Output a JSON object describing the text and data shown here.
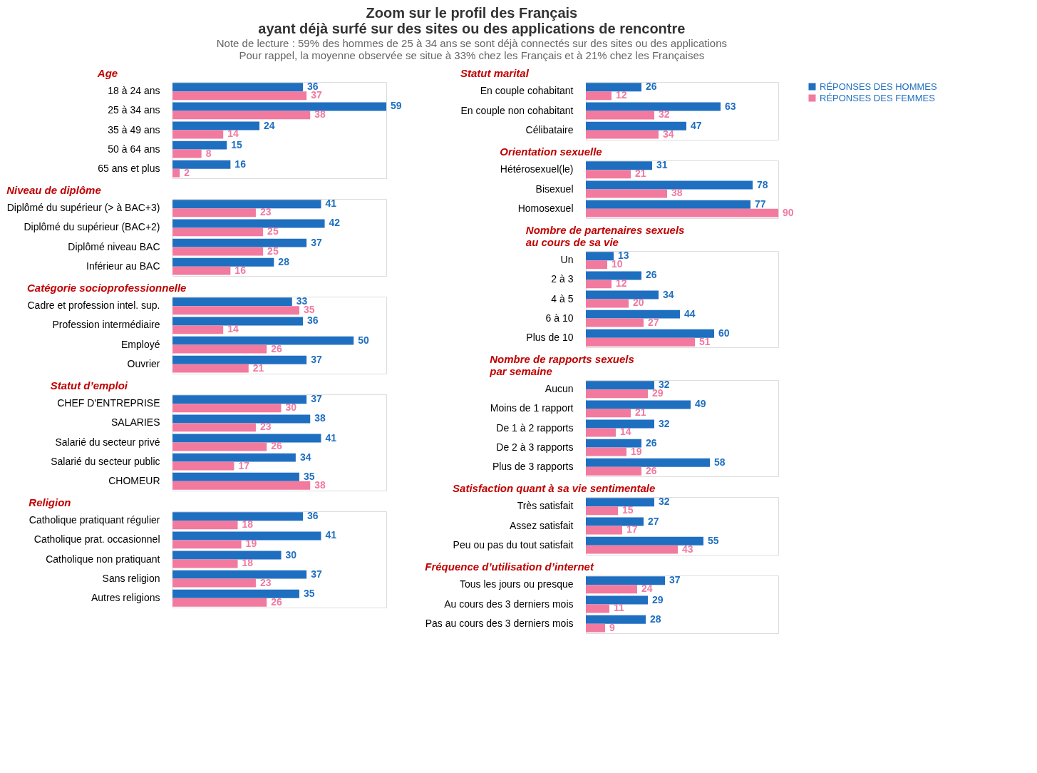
{
  "chart_data": [
    {
      "type": "other",
      "title": "Zoom sur le profil des Français\nayant déjà surfé sur des sites ou des applications de rencontre",
      "subtitle": "Note de lecture : 59% des hommes de 25 à 34 ans se sont déjà connectés sur des sites ou des applications",
      "annotations": [
        "Pour rappel, la moyenne observée se situe à 33% chez les Français et à 21% chez les Françaises"
      ]
    },
    {
      "type": "bar",
      "orientation": "horizontal",
      "title": "Age",
      "data_labels": true,
      "legend": "right",
      "categories": [
        "18 à 24 ans",
        "25 à 34 ans",
        "35 à 49 ans",
        "50 à 64 ans",
        "65 ans et plus"
      ],
      "series": [
        {
          "name": "RÉPONSES DES HOMMES",
          "color": "#1f6fc1",
          "values": [
            36,
            59,
            24,
            15,
            16
          ]
        },
        {
          "name": "RÉPONSES DES FEMMES",
          "color": "#f27a9f",
          "values": [
            37,
            38,
            14,
            8,
            2
          ]
        }
      ]
    },
    {
      "type": "bar",
      "orientation": "horizontal",
      "title": "Niveau de diplôme",
      "data_labels": true,
      "categories": [
        "Diplômé du supérieur (> à BAC+3)",
        "Diplômé du supérieur (BAC+2)",
        "Diplômé niveau BAC",
        "Inférieur au BAC"
      ],
      "series": [
        {
          "name": "RÉPONSES DES HOMMES",
          "color": "#1f6fc1",
          "values": [
            41,
            42,
            37,
            28
          ]
        },
        {
          "name": "RÉPONSES DES FEMMES",
          "color": "#f27a9f",
          "values": [
            23,
            25,
            25,
            16
          ]
        }
      ]
    },
    {
      "type": "bar",
      "orientation": "horizontal",
      "title": "Catégorie socioprofessionnelle",
      "data_labels": true,
      "categories": [
        "Cadre et profession intel. sup.",
        "Profession intermédiaire",
        "Employé",
        "Ouvrier"
      ],
      "series": [
        {
          "name": "RÉPONSES DES HOMMES",
          "color": "#1f6fc1",
          "values": [
            33,
            36,
            50,
            37
          ]
        },
        {
          "name": "RÉPONSES DES FEMMES",
          "color": "#f27a9f",
          "values": [
            35,
            14,
            26,
            21
          ]
        }
      ]
    },
    {
      "type": "bar",
      "orientation": "horizontal",
      "title": "Statut d’emploi",
      "data_labels": true,
      "categories": [
        "CHEF D'ENTREPRISE",
        "SALARIES",
        "Salarié du secteur privé",
        "Salarié du secteur public",
        "CHOMEUR"
      ],
      "series": [
        {
          "name": "RÉPONSES DES HOMMES",
          "color": "#1f6fc1",
          "values": [
            37,
            38,
            41,
            34,
            35
          ]
        },
        {
          "name": "RÉPONSES DES FEMMES",
          "color": "#f27a9f",
          "values": [
            30,
            23,
            26,
            17,
            38
          ]
        }
      ]
    },
    {
      "type": "bar",
      "orientation": "horizontal",
      "title": "Religion",
      "data_labels": true,
      "categories": [
        "Catholique pratiquant régulier",
        "Catholique prat. occasionnel",
        "Catholique non pratiquant",
        "Sans religion",
        "Autres religions"
      ],
      "series": [
        {
          "name": "RÉPONSES DES HOMMES",
          "color": "#1f6fc1",
          "values": [
            36,
            41,
            30,
            37,
            35
          ]
        },
        {
          "name": "RÉPONSES DES FEMMES",
          "color": "#f27a9f",
          "values": [
            18,
            19,
            18,
            23,
            26
          ]
        }
      ]
    },
    {
      "type": "bar",
      "orientation": "horizontal",
      "title": "Statut marital",
      "data_labels": true,
      "categories": [
        "En couple cohabitant",
        "En couple non cohabitant",
        "Célibataire"
      ],
      "series": [
        {
          "name": "RÉPONSES DES HOMMES",
          "color": "#1f6fc1",
          "values": [
            26,
            63,
            47
          ]
        },
        {
          "name": "RÉPONSES DES FEMMES",
          "color": "#f27a9f",
          "values": [
            12,
            32,
            34
          ]
        }
      ]
    },
    {
      "type": "bar",
      "orientation": "horizontal",
      "title": "Orientation sexuelle",
      "data_labels": true,
      "categories": [
        "Hétérosexuel(le)",
        "Bisexuel",
        "Homosexuel"
      ],
      "series": [
        {
          "name": "RÉPONSES DES HOMMES",
          "color": "#1f6fc1",
          "values": [
            31,
            78,
            77
          ]
        },
        {
          "name": "RÉPONSES DES FEMMES",
          "color": "#f27a9f",
          "values": [
            21,
            38,
            90
          ]
        }
      ]
    },
    {
      "type": "bar",
      "orientation": "horizontal",
      "title": "Nombre de partenaires sexuels\nau cours de sa vie",
      "data_labels": true,
      "categories": [
        "Un",
        "2 à 3",
        "4 à 5",
        "6 à 10",
        "Plus de 10"
      ],
      "series": [
        {
          "name": "RÉPONSES DES HOMMES",
          "color": "#1f6fc1",
          "values": [
            13,
            26,
            34,
            44,
            60
          ]
        },
        {
          "name": "RÉPONSES DES FEMMES",
          "color": "#f27a9f",
          "values": [
            10,
            12,
            20,
            27,
            51
          ]
        }
      ]
    },
    {
      "type": "bar",
      "orientation": "horizontal",
      "title": "Nombre de rapports sexuels\npar semaine",
      "data_labels": true,
      "categories": [
        "Aucun",
        "Moins de 1 rapport",
        "De 1 à 2 rapports",
        "De 2 à 3 rapports",
        "Plus de 3 rapports"
      ],
      "series": [
        {
          "name": "RÉPONSES DES HOMMES",
          "color": "#1f6fc1",
          "values": [
            32,
            49,
            32,
            26,
            58
          ]
        },
        {
          "name": "RÉPONSES DES FEMMES",
          "color": "#f27a9f",
          "values": [
            29,
            21,
            14,
            19,
            26
          ]
        }
      ]
    },
    {
      "type": "bar",
      "orientation": "horizontal",
      "title": "Satisfaction quant à sa vie sentimentale",
      "data_labels": true,
      "categories": [
        "Très satisfait",
        "Assez satisfait",
        "Peu ou pas du tout satisfait"
      ],
      "series": [
        {
          "name": "RÉPONSES DES HOMMES",
          "color": "#1f6fc1",
          "values": [
            32,
            27,
            55
          ]
        },
        {
          "name": "RÉPONSES DES FEMMES",
          "color": "#f27a9f",
          "values": [
            15,
            17,
            43
          ]
        }
      ]
    },
    {
      "type": "bar",
      "orientation": "horizontal",
      "title": "Fréquence d’utilisation d’internet",
      "data_labels": true,
      "categories": [
        "Tous les jours ou presque",
        "Au cours des 3 derniers mois",
        "Pas au cours des 3 derniers mois"
      ],
      "series": [
        {
          "name": "RÉPONSES DES HOMMES",
          "color": "#1f6fc1",
          "values": [
            37,
            29,
            28
          ]
        },
        {
          "name": "RÉPONSES DES FEMMES",
          "color": "#f27a9f",
          "values": [
            24,
            11,
            9
          ]
        }
      ]
    }
  ]
}
